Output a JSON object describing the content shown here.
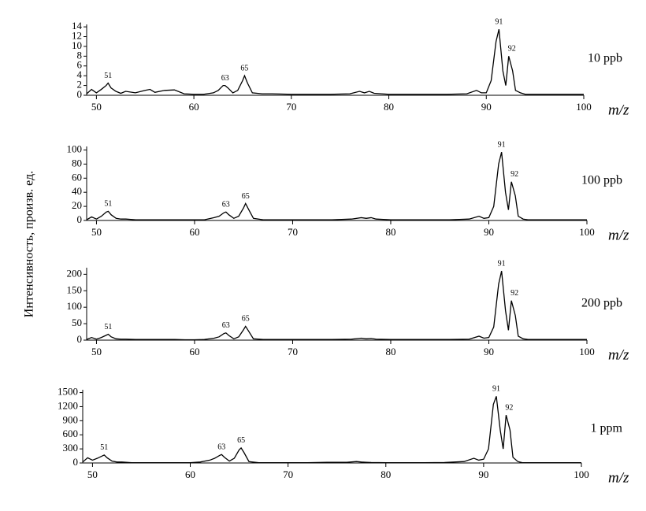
{
  "chart_data": [
    {
      "type": "line",
      "ylabel": "Интенсивность,  произв. ед.",
      "xlabel": "m/z",
      "note": "10 ppb",
      "color": "#000000",
      "x": [
        49,
        49.5,
        50,
        50.5,
        51,
        51.2,
        51.5,
        52,
        52.5,
        53,
        54,
        55,
        55.5,
        56,
        57,
        58,
        59,
        60,
        61,
        62,
        62.5,
        63,
        63.2,
        63.5,
        64,
        64.5,
        65,
        65.2,
        65.5,
        66,
        67,
        68,
        70,
        72,
        74,
        76,
        77,
        77.5,
        78,
        78.5,
        80,
        82,
        84,
        86,
        88,
        89,
        89.5,
        90,
        90.5,
        91,
        91.3,
        91.7,
        92,
        92.3,
        92.7,
        93,
        93.5,
        94,
        96,
        98,
        100
      ],
      "values": [
        0.3,
        1.2,
        0.5,
        1.2,
        2,
        2.5,
        1.5,
        0.8,
        0.4,
        0.8,
        0.5,
        1,
        1.2,
        0.6,
        1,
        1.1,
        0.3,
        0.2,
        0.2,
        0.5,
        1,
        2,
        2,
        1.5,
        0.5,
        1,
        3,
        4,
        2.5,
        0.5,
        0.3,
        0.3,
        0.2,
        0.2,
        0.2,
        0.3,
        0.8,
        0.5,
        0.8,
        0.4,
        0.2,
        0.2,
        0.2,
        0.2,
        0.3,
        1,
        0.5,
        0.5,
        3,
        11,
        13.5,
        5,
        2,
        8,
        5,
        1,
        0.5,
        0.2,
        0.2,
        0.2,
        0.2
      ],
      "xlim": [
        49,
        100
      ],
      "xticks": [
        50,
        60,
        70,
        80,
        90,
        100
      ],
      "ylim": [
        0,
        14.5
      ],
      "yticks": [
        0,
        2,
        4,
        6,
        8,
        10,
        12,
        14
      ],
      "peak_labels": [
        {
          "label": "51",
          "x": 51.2
        },
        {
          "label": "63",
          "x": 63.2
        },
        {
          "label": "65",
          "x": 65.2
        },
        {
          "label": "91",
          "x": 91.3
        },
        {
          "label": "92",
          "x": 92.3
        }
      ]
    },
    {
      "type": "line",
      "xlabel": "m/z",
      "note": "100 ppb",
      "color": "#000000",
      "x": [
        49,
        49.5,
        50,
        50.5,
        51,
        51.2,
        51.5,
        52,
        52.5,
        53,
        54,
        55,
        55.5,
        56,
        57,
        58,
        59,
        60,
        61,
        62,
        62.5,
        63,
        63.2,
        63.5,
        64,
        64.5,
        65,
        65.2,
        65.5,
        66,
        67,
        68,
        70,
        72,
        74,
        76,
        77,
        77.5,
        78,
        78.5,
        80,
        82,
        84,
        86,
        88,
        89,
        89.5,
        90,
        90.5,
        91,
        91.3,
        91.7,
        92,
        92.3,
        92.7,
        93,
        93.5,
        94,
        96,
        98,
        100
      ],
      "values": [
        1,
        5,
        2,
        6,
        12,
        13,
        8,
        3,
        2,
        2,
        1,
        1,
        1,
        1,
        1,
        1,
        1,
        1,
        1,
        4,
        6,
        11,
        12,
        8,
        3,
        6,
        18,
        24,
        16,
        3,
        1,
        1,
        1,
        1,
        1,
        2,
        4,
        3,
        4,
        2,
        1,
        1,
        1,
        1,
        2,
        6,
        3,
        4,
        20,
        80,
        97,
        40,
        15,
        55,
        35,
        6,
        2,
        1,
        1,
        1,
        1
      ],
      "xlim": [
        49,
        100
      ],
      "xticks": [
        50,
        60,
        70,
        80,
        90,
        100
      ],
      "ylim": [
        0,
        105
      ],
      "yticks": [
        0,
        20,
        40,
        60,
        80,
        100
      ],
      "peak_labels": [
        {
          "label": "51",
          "x": 51.2
        },
        {
          "label": "63",
          "x": 63.2
        },
        {
          "label": "65",
          "x": 65.2
        },
        {
          "label": "91",
          "x": 91.3
        },
        {
          "label": "92",
          "x": 92.3
        }
      ]
    },
    {
      "type": "line",
      "xlabel": "m/z",
      "note": "200 ppb",
      "color": "#000000",
      "x": [
        49,
        49.5,
        50,
        50.5,
        51,
        51.2,
        51.5,
        52,
        52.5,
        53,
        54,
        55,
        55.5,
        56,
        57,
        58,
        59,
        60,
        61,
        62,
        62.5,
        63,
        63.2,
        63.5,
        64,
        64.5,
        65,
        65.2,
        65.5,
        66,
        67,
        68,
        70,
        72,
        74,
        76,
        77,
        77.5,
        78,
        78.5,
        80,
        82,
        84,
        86,
        88,
        89,
        89.5,
        90,
        90.5,
        91,
        91.3,
        91.7,
        92,
        92.3,
        92.7,
        93,
        93.5,
        94,
        96,
        98,
        100
      ],
      "values": [
        2,
        8,
        3,
        8,
        15,
        18,
        10,
        4,
        3,
        3,
        2,
        2,
        2,
        2,
        2,
        2,
        1,
        1,
        2,
        6,
        10,
        20,
        22,
        14,
        4,
        10,
        32,
        42,
        28,
        4,
        2,
        2,
        2,
        2,
        2,
        3,
        6,
        4,
        5,
        3,
        2,
        2,
        2,
        2,
        3,
        12,
        6,
        8,
        40,
        170,
        210,
        90,
        30,
        120,
        75,
        12,
        4,
        2,
        2,
        2,
        2
      ],
      "xlim": [
        49,
        100
      ],
      "xticks": [
        50,
        60,
        70,
        80,
        90,
        100
      ],
      "ylim": [
        0,
        220
      ],
      "yticks": [
        0,
        50,
        100,
        150,
        200
      ],
      "peak_labels": [
        {
          "label": "51",
          "x": 51.2
        },
        {
          "label": "63",
          "x": 63.2
        },
        {
          "label": "65",
          "x": 65.2
        },
        {
          "label": "91",
          "x": 91.3
        },
        {
          "label": "92",
          "x": 92.3
        }
      ]
    },
    {
      "type": "line",
      "xlabel": "m/z",
      "note": "1 ppm",
      "color": "#000000",
      "x": [
        49,
        49.5,
        50,
        50.5,
        51,
        51.2,
        51.5,
        52,
        52.5,
        53,
        54,
        55,
        55.5,
        56,
        57,
        58,
        59,
        60,
        61,
        62,
        62.5,
        63,
        63.2,
        63.5,
        64,
        64.5,
        65,
        65.2,
        65.5,
        66,
        67,
        68,
        70,
        72,
        74,
        76,
        77,
        77.5,
        78,
        78.5,
        80,
        82,
        84,
        86,
        88,
        89,
        89.5,
        90,
        90.5,
        91,
        91.3,
        91.7,
        92,
        92.3,
        92.7,
        93,
        93.5,
        94,
        96,
        98,
        100
      ],
      "values": [
        20,
        110,
        60,
        100,
        150,
        170,
        110,
        40,
        20,
        20,
        5,
        5,
        5,
        5,
        5,
        5,
        5,
        5,
        20,
        60,
        100,
        160,
        180,
        120,
        40,
        100,
        280,
        320,
        220,
        30,
        5,
        5,
        5,
        5,
        15,
        15,
        30,
        20,
        15,
        10,
        5,
        5,
        5,
        10,
        30,
        100,
        60,
        80,
        300,
        1250,
        1420,
        700,
        300,
        1020,
        700,
        120,
        30,
        5,
        5,
        5,
        5
      ],
      "xlim": [
        49,
        100
      ],
      "xticks": [
        50,
        60,
        70,
        80,
        90,
        100
      ],
      "ylim": [
        0,
        1560
      ],
      "yticks": [
        0,
        300,
        600,
        900,
        1200,
        1500
      ],
      "peak_labels": [
        {
          "label": "51",
          "x": 51.2
        },
        {
          "label": "63",
          "x": 63.2
        },
        {
          "label": "65",
          "x": 65.2
        },
        {
          "label": "91",
          "x": 91.3
        },
        {
          "label": "92",
          "x": 92.3
        }
      ]
    }
  ]
}
